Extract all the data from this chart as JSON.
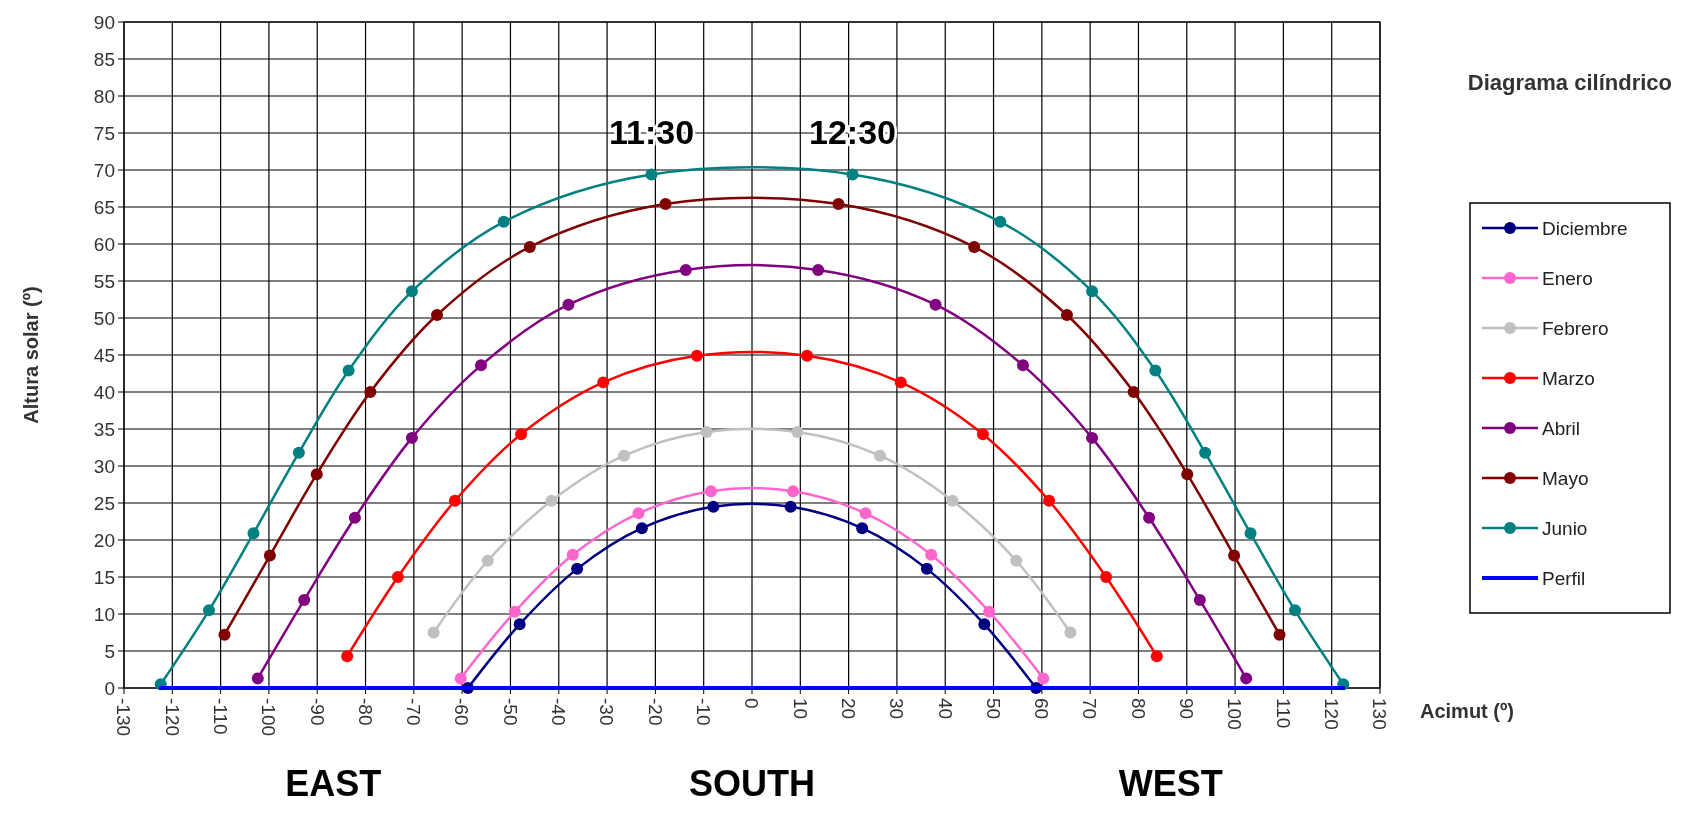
{
  "chart_data": {
    "type": "line",
    "title": "Diagrama cilíndrico",
    "xlabel": "Acimut (º)",
    "ylabel": "Altura solar (º)",
    "xlim": [
      -130,
      130
    ],
    "xticks": [
      -130,
      -120,
      -110,
      -100,
      -90,
      -80,
      -70,
      -60,
      -50,
      -40,
      -30,
      -20,
      -10,
      0,
      10,
      20,
      30,
      40,
      50,
      60,
      70,
      80,
      90,
      100,
      110,
      120,
      130
    ],
    "ylim": [
      0,
      90
    ],
    "yticks": [
      0,
      5,
      10,
      15,
      20,
      25,
      30,
      35,
      40,
      45,
      50,
      55,
      60,
      65,
      70,
      75,
      80,
      85,
      90
    ],
    "grid": true,
    "legend": "right",
    "marker": "circle",
    "series": [
      {
        "name": "Diciembre",
        "color": "#000080",
        "x": [
          -58.8,
          -48.1,
          -36.2,
          -22.8,
          -8,
          8,
          22.8,
          36.2,
          48.1,
          58.8
        ],
        "values": [
          0,
          8.6,
          16.1,
          21.6,
          24.5,
          24.5,
          21.6,
          16.1,
          8.6,
          0
        ]
      },
      {
        "name": "Enero",
        "color": "#ff66cc",
        "x": [
          -60.3,
          -49.1,
          -37.1,
          -23.5,
          -8.5,
          8.5,
          23.5,
          37.1,
          49.1,
          60.3
        ],
        "values": [
          1.3,
          10.3,
          18,
          23.6,
          26.6,
          26.6,
          23.6,
          18,
          10.3,
          1.3
        ]
      },
      {
        "name": "Febrero",
        "color": "#c0c0c0",
        "x": [
          -65.9,
          -54.7,
          -41.5,
          -26.5,
          -9.4,
          9.4,
          26.5,
          41.5,
          54.7,
          65.9
        ],
        "values": [
          7.5,
          17.2,
          25.3,
          31.4,
          34.6,
          34.6,
          31.4,
          25.3,
          17.2,
          7.5
        ]
      },
      {
        "name": "Marzo",
        "color": "#ff0000",
        "x": [
          -83.8,
          -73.3,
          -61.5,
          -47.8,
          -30.8,
          -11.4,
          11.4,
          30.8,
          47.8,
          61.5,
          73.3,
          83.8
        ],
        "values": [
          4.3,
          15,
          25.3,
          34.3,
          41.3,
          44.9,
          44.9,
          41.3,
          34.3,
          25.3,
          15,
          4.3
        ]
      },
      {
        "name": "Abril",
        "color": "#800080",
        "x": [
          -102.3,
          -92.7,
          -82.2,
          -70.4,
          -56.1,
          -38,
          -13.7,
          13.7,
          38,
          56.1,
          70.4,
          82.2,
          92.7,
          102.3
        ],
        "values": [
          1.3,
          11.9,
          23,
          33.8,
          43.6,
          51.8,
          56.5,
          56.5,
          51.8,
          43.6,
          33.8,
          23,
          11.9,
          1.3
        ]
      },
      {
        "name": "Mayo",
        "color": "#800000",
        "x": [
          -109.2,
          -99.8,
          -90.1,
          -79,
          -65.2,
          -46,
          -17.9,
          17.9,
          46,
          65.2,
          79,
          90.1,
          99.8,
          109.2
        ],
        "values": [
          7.2,
          17.9,
          28.9,
          40,
          50.4,
          59.6,
          65.4,
          65.4,
          59.6,
          50.4,
          40,
          28.9,
          17.9,
          7.2
        ]
      },
      {
        "name": "Junio",
        "color": "#008080",
        "x": [
          -122.4,
          -112.4,
          -103.2,
          -93.8,
          -83.5,
          -70.4,
          -51.4,
          -20.8,
          20.8,
          51.4,
          70.4,
          83.5,
          93.8,
          103.2,
          112.4,
          122.4
        ],
        "values": [
          0.5,
          10.5,
          20.9,
          31.8,
          42.9,
          53.6,
          63,
          69.4,
          69.4,
          63,
          53.6,
          42.9,
          31.8,
          20.9,
          10.5,
          0.5
        ]
      },
      {
        "name": "Perfil",
        "color": "#0000ff",
        "marker": "none",
        "x": [
          -122.4,
          122.4
        ],
        "values": [
          0,
          0
        ]
      }
    ],
    "annotations": [
      {
        "text": "11:30",
        "x": -20.8,
        "y": 69.4
      },
      {
        "text": "12:30",
        "x": 20.8,
        "y": 69.4
      },
      "EAST",
      "SOUTH",
      "WEST"
    ]
  }
}
